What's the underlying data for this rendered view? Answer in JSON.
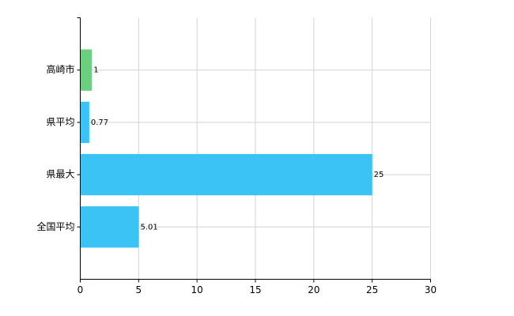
{
  "chart_data": {
    "type": "hbar",
    "categories": [
      "高崎市",
      "県平均",
      "県最大",
      "全国平均"
    ],
    "values": [
      1,
      0.77,
      25,
      5.01
    ],
    "colors": [
      "#6ccf7f",
      "#3cc3f5",
      "#3cc3f5",
      "#3cc3f5"
    ],
    "xlim": [
      0,
      30
    ],
    "xticks": [
      0,
      5,
      10,
      15,
      20,
      25,
      30
    ],
    "grid": true
  }
}
